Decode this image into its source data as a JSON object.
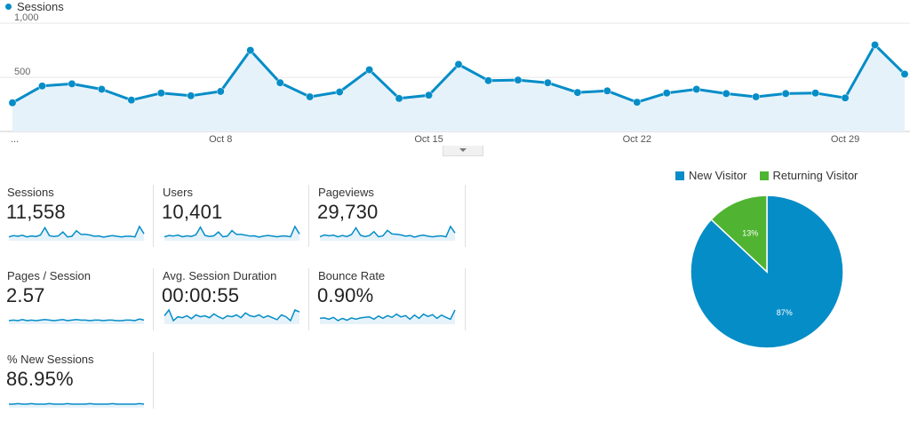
{
  "chart_data": [
    {
      "type": "line",
      "series": [
        {
          "name": "Sessions",
          "values": [
            265,
            420,
            440,
            390,
            290,
            355,
            330,
            370,
            750,
            450,
            320,
            365,
            570,
            305,
            335,
            620,
            470,
            475,
            450,
            360,
            375,
            270,
            355,
            390,
            350,
            320,
            350,
            355,
            310,
            800,
            530
          ]
        }
      ],
      "x_tick_labels": [
        "...",
        "Oct 8",
        "Oct 15",
        "Oct 22",
        "Oct 29"
      ],
      "y_tick_labels": [
        "1,000",
        "500"
      ],
      "ylim": [
        0,
        1100
      ],
      "grid": true,
      "legend_placement": "top-left",
      "colors": {
        "line": "#058dc7",
        "fill": "#e6f2fa"
      }
    },
    {
      "type": "pie",
      "slices": [
        {
          "label": "New Visitor",
          "value": 87,
          "display": "87%",
          "color": "#058dc7"
        },
        {
          "label": "Returning Visitor",
          "value": 13,
          "display": "13%",
          "color": "#50b432"
        }
      ],
      "legend_placement": "top"
    }
  ],
  "metrics": [
    {
      "label": "Sessions",
      "value": "11,558",
      "spark": [
        30,
        34,
        32,
        35,
        30,
        33,
        31,
        36,
        60,
        34,
        31,
        33,
        46,
        30,
        32,
        50,
        38,
        38,
        36,
        32,
        33,
        29,
        32,
        34,
        32,
        30,
        32,
        32,
        30,
        64,
        40
      ]
    },
    {
      "label": "Users",
      "value": "10,401",
      "spark": [
        30,
        34,
        32,
        35,
        30,
        33,
        31,
        36,
        58,
        34,
        31,
        33,
        44,
        30,
        32,
        48,
        37,
        37,
        35,
        32,
        33,
        29,
        32,
        34,
        32,
        30,
        32,
        32,
        30,
        60,
        38
      ]
    },
    {
      "label": "Pageviews",
      "value": "29,730",
      "spark": [
        30,
        36,
        33,
        35,
        30,
        34,
        31,
        37,
        58,
        35,
        31,
        34,
        46,
        30,
        33,
        50,
        39,
        38,
        36,
        32,
        34,
        29,
        33,
        35,
        32,
        30,
        32,
        33,
        30,
        62,
        42
      ]
    },
    {
      "label": "Pages / Session",
      "value": "2.57",
      "spark": [
        40,
        41,
        40,
        42,
        40,
        41,
        40,
        41,
        42,
        41,
        40,
        41,
        42,
        40,
        41,
        42,
        41,
        41,
        40,
        41,
        41,
        40,
        41,
        41,
        40,
        40,
        41,
        41,
        40,
        43,
        41
      ]
    },
    {
      "label": "Avg. Session Duration",
      "value": "00:00:55",
      "spark": [
        40,
        52,
        30,
        38,
        36,
        40,
        34,
        42,
        38,
        40,
        36,
        44,
        38,
        34,
        40,
        38,
        42,
        36,
        46,
        40,
        38,
        42,
        36,
        40,
        36,
        32,
        42,
        38,
        30,
        52,
        48
      ]
    },
    {
      "label": "Bounce Rate",
      "value": "0.90%",
      "spark": [
        34,
        36,
        30,
        38,
        24,
        34,
        26,
        36,
        30,
        36,
        38,
        40,
        30,
        44,
        34,
        46,
        38,
        52,
        40,
        46,
        30,
        48,
        34,
        52,
        42,
        50,
        34,
        48,
        38,
        30,
        70
      ]
    },
    {
      "label": "% New Sessions",
      "value": "86.95%",
      "spark": [
        40,
        40,
        41,
        40,
        40,
        41,
        40,
        40,
        40,
        41,
        40,
        40,
        40,
        41,
        40,
        40,
        40,
        40,
        41,
        40,
        40,
        40,
        40,
        41,
        40,
        40,
        40,
        40,
        40,
        41,
        40
      ]
    }
  ]
}
